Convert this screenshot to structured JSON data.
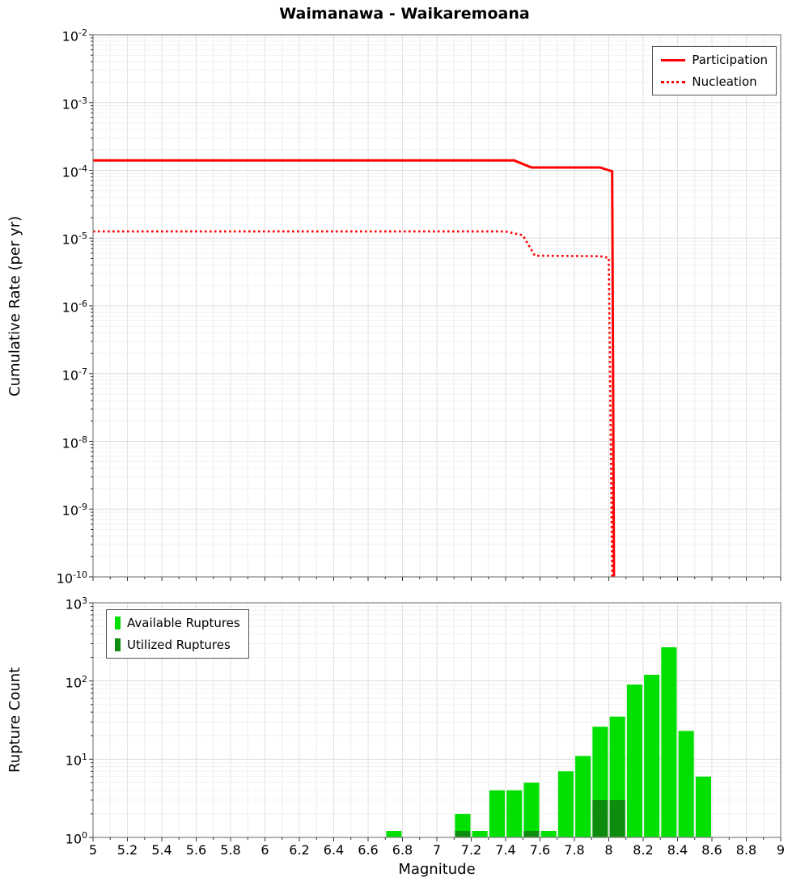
{
  "chart_data": [
    {
      "type": "line",
      "title": "Waimanawa - Waikaremoana",
      "xlabel": "Magnitude",
      "ylabel": "Cumulative Rate (per yr)",
      "xlim": [
        5,
        9
      ],
      "y_scale": "log",
      "ylim": [
        1e-10,
        0.01
      ],
      "y_tick_exponents": [
        -2,
        -3,
        -4,
        -5,
        -6,
        -7,
        -8,
        -9,
        -10
      ],
      "grid": true,
      "legend_position": "top-right",
      "series": [
        {
          "name": "Participation",
          "style": "solid",
          "color": "#ff0000",
          "points": [
            [
              5,
              0.00014
            ],
            [
              7.45,
              0.00014
            ],
            [
              7.55,
              0.00011
            ],
            [
              7.95,
              0.00011
            ],
            [
              8.0,
              0.0001
            ],
            [
              8.02,
              9.7e-05
            ],
            [
              8.03,
              1e-10
            ]
          ]
        },
        {
          "name": "Nucleation",
          "style": "dotted",
          "color": "#ff0000",
          "points": [
            [
              5,
              1.25e-05
            ],
            [
              7.4,
              1.25e-05
            ],
            [
              7.5,
              1.1e-05
            ],
            [
              7.57,
              5.5e-06
            ],
            [
              7.95,
              5.4e-06
            ],
            [
              8.0,
              5.1e-06
            ],
            [
              8.02,
              1e-10
            ]
          ]
        }
      ]
    },
    {
      "type": "bar",
      "xlabel": "Magnitude",
      "ylabel": "Rupture Count",
      "xlim": [
        5,
        9
      ],
      "y_scale": "log",
      "ylim": [
        1,
        1000
      ],
      "y_tick_exponents": [
        3,
        2,
        1,
        0
      ],
      "x_tick_labels": [
        "5",
        "5.2",
        "5.4",
        "5.6",
        "5.8",
        "6",
        "6.2",
        "6.4",
        "6.6",
        "6.8",
        "7",
        "7.2",
        "7.4",
        "7.6",
        "7.8",
        "8",
        "8.2",
        "8.4",
        "8.6",
        "8.8",
        "9"
      ],
      "grid": true,
      "legend_position": "top-left",
      "bar_width": 0.1,
      "series": [
        {
          "name": "Available Ruptures",
          "color": "#00e000",
          "bins": [
            6.75,
            7.15,
            7.25,
            7.35,
            7.45,
            7.55,
            7.65,
            7.75,
            7.85,
            7.95,
            8.05,
            8.15,
            8.25,
            8.35,
            8.45,
            8.55
          ],
          "counts": [
            1,
            2,
            1,
            4,
            4,
            5,
            1,
            7,
            11,
            26,
            35,
            90,
            120,
            270,
            23,
            6
          ]
        },
        {
          "name": "Utilized Ruptures",
          "color": "#0e8c0e",
          "bins": [
            7.15,
            7.55,
            7.95,
            8.05
          ],
          "counts": [
            1,
            1,
            3,
            3
          ]
        }
      ]
    }
  ]
}
